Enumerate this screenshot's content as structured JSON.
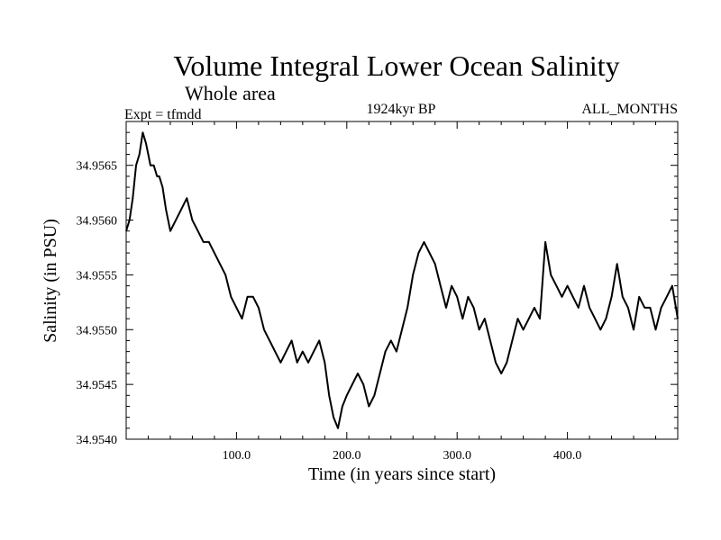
{
  "chart_data": {
    "type": "line",
    "title": "Volume Integral Lower Ocean Salinity",
    "subtitle": "Whole area",
    "experiment_label": "Expt = tfmdd",
    "period_label": "1924kyr BP",
    "months_label": "ALL_MONTHS",
    "xlabel": "Time (in years since start)",
    "ylabel": "Salinity (in PSU)",
    "xlim": [
      0,
      500
    ],
    "ylim": [
      34.954,
      34.9569
    ],
    "x_ticks": [
      100,
      200,
      300,
      400
    ],
    "x_tick_labels": [
      "100.0",
      "200.0",
      "300.0",
      "400.0"
    ],
    "y_ticks": [
      34.954,
      34.9545,
      34.955,
      34.9555,
      34.956,
      34.9565
    ],
    "y_tick_labels": [
      "34.9540",
      "34.9545",
      "34.9550",
      "34.9555",
      "34.9560",
      "34.9565"
    ],
    "series": [
      {
        "name": "salinity",
        "x": [
          0,
          3,
          6,
          9,
          12,
          15,
          18,
          20,
          22,
          25,
          28,
          30,
          33,
          36,
          40,
          45,
          50,
          55,
          60,
          65,
          70,
          75,
          80,
          85,
          90,
          95,
          100,
          105,
          110,
          115,
          120,
          125,
          130,
          135,
          140,
          145,
          150,
          155,
          160,
          165,
          170,
          175,
          180,
          184,
          188,
          192,
          196,
          200,
          205,
          210,
          215,
          220,
          225,
          230,
          235,
          240,
          245,
          250,
          255,
          260,
          265,
          270,
          275,
          280,
          285,
          290,
          295,
          300,
          305,
          310,
          315,
          320,
          325,
          330,
          335,
          340,
          345,
          350,
          355,
          360,
          365,
          370,
          375,
          380,
          385,
          390,
          395,
          400,
          405,
          410,
          415,
          420,
          425,
          430,
          435,
          440,
          445,
          450,
          455,
          460,
          465,
          470,
          475,
          480,
          485,
          490,
          495,
          500
        ],
        "values": [
          34.9559,
          34.956,
          34.9562,
          34.9565,
          34.9566,
          34.9568,
          34.9567,
          34.9566,
          34.9565,
          34.9565,
          34.9564,
          34.9564,
          34.9563,
          34.9561,
          34.9559,
          34.956,
          34.9561,
          34.9562,
          34.956,
          34.9559,
          34.9558,
          34.9558,
          34.9557,
          34.9556,
          34.9555,
          34.9553,
          34.9552,
          34.9551,
          34.9553,
          34.9553,
          34.9552,
          34.955,
          34.9549,
          34.9548,
          34.9547,
          34.9548,
          34.9549,
          34.9547,
          34.9548,
          34.9547,
          34.9548,
          34.9549,
          34.9547,
          34.9544,
          34.9542,
          34.9541,
          34.9543,
          34.9544,
          34.9545,
          34.9546,
          34.9545,
          34.9543,
          34.9544,
          34.9546,
          34.9548,
          34.9549,
          34.9548,
          34.955,
          34.9552,
          34.9555,
          34.9557,
          34.9558,
          34.9557,
          34.9556,
          34.9554,
          34.9552,
          34.9554,
          34.9553,
          34.9551,
          34.9553,
          34.9552,
          34.955,
          34.9551,
          34.9549,
          34.9547,
          34.9546,
          34.9547,
          34.9549,
          34.9551,
          34.955,
          34.9551,
          34.9552,
          34.9551,
          34.9558,
          34.9555,
          34.9554,
          34.9553,
          34.9554,
          34.9553,
          34.9552,
          34.9554,
          34.9552,
          34.9551,
          34.955,
          34.9551,
          34.9553,
          34.9556,
          34.9553,
          34.9552,
          34.955,
          34.9553,
          34.9552,
          34.9552,
          34.955,
          34.9552,
          34.9553,
          34.9554,
          34.9551
        ]
      }
    ]
  }
}
